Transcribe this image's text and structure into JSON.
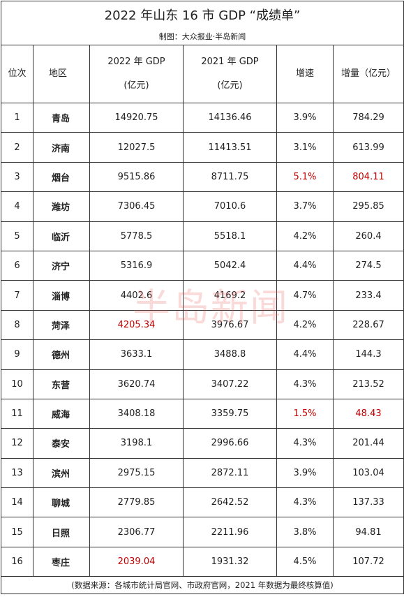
{
  "header": {
    "title": "2022 年山东 16 市 GDP “成绩单”",
    "credit": "制图：大众报业·半岛新闻"
  },
  "table": {
    "columns": [
      [
        "位次"
      ],
      [
        "地区"
      ],
      [
        "2022 年 GDP",
        "(亿元)"
      ],
      [
        "2021 年 GDP",
        "(亿元)"
      ],
      [
        "增速"
      ],
      [
        "增量（亿元）"
      ]
    ],
    "rows": [
      [
        "1",
        "青岛",
        "14920.75",
        "14136.46",
        "3.9%",
        "784.29"
      ],
      [
        "2",
        "济南",
        "12027.5",
        "11413.51",
        "3.1%",
        "613.99"
      ],
      [
        "3",
        "烟台",
        "9515.86",
        "8711.75",
        "5.1%",
        "804.11"
      ],
      [
        "4",
        "潍坊",
        "7306.45",
        "7010.6",
        "3.7%",
        "295.85"
      ],
      [
        "5",
        "临沂",
        "5778.5",
        "5518.1",
        "4.2%",
        "260.4"
      ],
      [
        "6",
        "济宁",
        "5316.9",
        "5042.4",
        "4.4%",
        "274.5"
      ],
      [
        "7",
        "淄博",
        "4402.6",
        "4169.2",
        "4.7%",
        "233.4"
      ],
      [
        "8",
        "菏泽",
        "4205.34",
        "3976.67",
        "4.2%",
        "228.67"
      ],
      [
        "9",
        "德州",
        "3633.1",
        "3488.8",
        "4.4%",
        "144.3"
      ],
      [
        "10",
        "东营",
        "3620.74",
        "3407.22",
        "4.3%",
        "213.52"
      ],
      [
        "11",
        "威海",
        "3408.18",
        "3359.75",
        "1.5%",
        "48.43"
      ],
      [
        "12",
        "泰安",
        "3198.1",
        "2996.66",
        "4.3%",
        "201.44"
      ],
      [
        "13",
        "滨州",
        "2975.15",
        "2872.11",
        "3.9%",
        "103.04"
      ],
      [
        "14",
        "聊城",
        "2779.85",
        "2642.52",
        "4.3%",
        "137.33"
      ],
      [
        "15",
        "日照",
        "2306.77",
        "2211.96",
        "3.8%",
        "94.81"
      ],
      [
        "16",
        "枣庄",
        "2039.04",
        "1931.32",
        "4.5%",
        "107.72"
      ]
    ]
  },
  "watermark": "半岛新闻",
  "footer": "(数据来源：各城市统计局官网、市政府官网，2021 年数据为最终核算值)"
}
